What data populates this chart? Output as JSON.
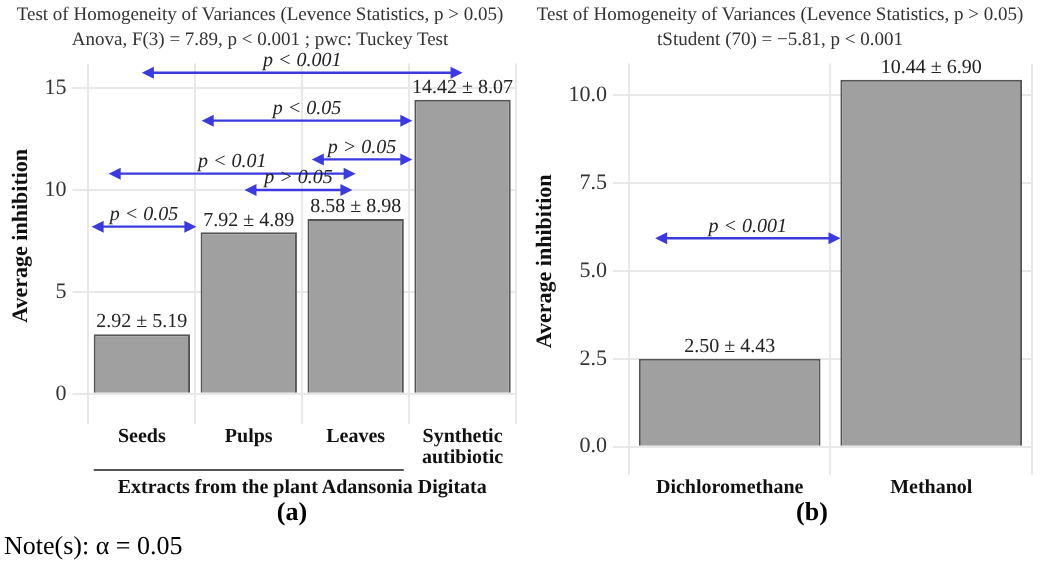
{
  "chart_data": [
    {
      "type": "bar",
      "title": "Test of Homogeneity of Variances (Levence Statistics, p > 0.05)",
      "subtitle": "Anova, F(3) = 7.89, p < 0.001 ; pwc: Tuckey Test",
      "xlabel": "Extracts from the plant Adansonia Digitata",
      "ylabel": "Average inhibition",
      "categories": [
        "Seeds",
        "Pulps",
        "Leaves",
        "Synthetic autibiotic"
      ],
      "values": [
        2.92,
        7.92,
        8.58,
        14.42
      ],
      "color": "#a0a0a0",
      "value_labels": [
        "2.92 ± 5.19",
        "7.92 ± 4.89",
        "8.58 ± 8.98",
        "14.42 ± 8.07"
      ],
      "ylim": [
        -0.7,
        16.2
      ],
      "yticks": [
        0,
        5,
        10,
        15
      ],
      "grid": true,
      "annotations": [
        "p < 0.001",
        "p < 0.05",
        "p > 0.05",
        "p < 0.01",
        "p > 0.05",
        "p < 0.05",
        "(a)",
        "Note(s): α = 0.05"
      ]
    },
    {
      "type": "bar",
      "title": "Test of Homogeneity of Variances (Levence Statistics, p > 0.05)",
      "subtitle": "tStudent (70) = −5.81, p < 0.001",
      "ylabel": "Average inhibition",
      "categories": [
        "Dichloromethane",
        "Methanol"
      ],
      "values": [
        2.5,
        10.44
      ],
      "color": "#a0a0a0",
      "value_labels": [
        "2.50 ± 4.43",
        "10.44 ± 6.90"
      ],
      "ylim": [
        -0.35,
        10.9
      ],
      "yticks": [
        {
          "value": 0,
          "label": "0.0"
        },
        {
          "value": 2.5,
          "label": "2.5"
        },
        {
          "value": 5,
          "label": "5.0"
        },
        {
          "value": 7.5,
          "label": "7.5"
        },
        {
          "value": 10,
          "label": "10.0"
        }
      ],
      "grid": true,
      "annotations": [
        "p < 0.001",
        "(b)"
      ]
    }
  ]
}
